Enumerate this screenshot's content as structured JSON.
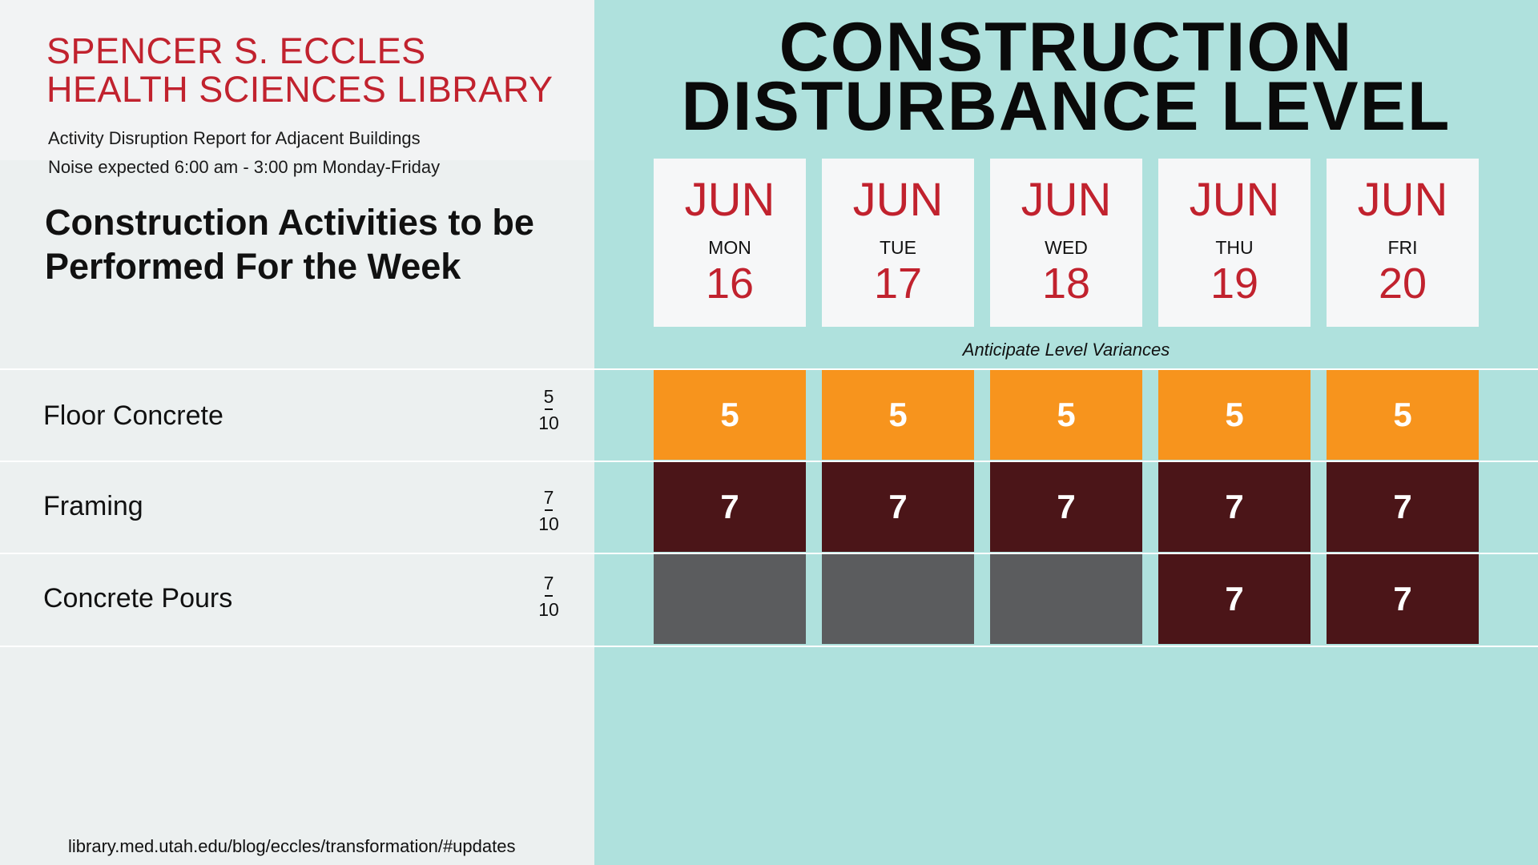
{
  "header": {
    "library_line1": "SPENCER S. ECCLES",
    "library_line2": "HEALTH SCIENCES LIBRARY",
    "report_title": "Activity Disruption Report for Adjacent Buildings",
    "noise_schedule": "Noise expected 6:00 am - 3:00 pm Monday-Friday",
    "week_title": "Construction Activities to be Performed For the Week"
  },
  "main_title": {
    "line1": "CONSTRUCTION",
    "line2": "DISTURBANCE LEVEL"
  },
  "days": [
    {
      "month": "JUN",
      "weekday": "MON",
      "day": "16"
    },
    {
      "month": "JUN",
      "weekday": "TUE",
      "day": "17"
    },
    {
      "month": "JUN",
      "weekday": "WED",
      "day": "18"
    },
    {
      "month": "JUN",
      "weekday": "THU",
      "day": "19"
    },
    {
      "month": "JUN",
      "weekday": "FRI",
      "day": "20"
    }
  ],
  "variance_note": "Anticipate Level Variances",
  "activities": [
    {
      "name": "Floor Concrete",
      "level_num": "5",
      "level_den": "10",
      "cells": [
        "5",
        "5",
        "5",
        "5",
        "5"
      ],
      "active": [
        true,
        true,
        true,
        true,
        true
      ],
      "color": "#f7941d"
    },
    {
      "name": "Framing",
      "level_num": "7",
      "level_den": "10",
      "cells": [
        "7",
        "7",
        "7",
        "7",
        "7"
      ],
      "active": [
        true,
        true,
        true,
        true,
        true
      ],
      "color": "#4b1518"
    },
    {
      "name": "Concrete Pours",
      "level_num": "7",
      "level_den": "10",
      "cells": [
        "",
        "",
        "",
        "7",
        "7"
      ],
      "active": [
        false,
        false,
        false,
        true,
        true
      ],
      "color": "#4b1518"
    }
  ],
  "inactive_color": "#5b5c5e",
  "footer": {
    "url": "library.med.utah.edu/blog/eccles/transformation/#updates"
  }
}
